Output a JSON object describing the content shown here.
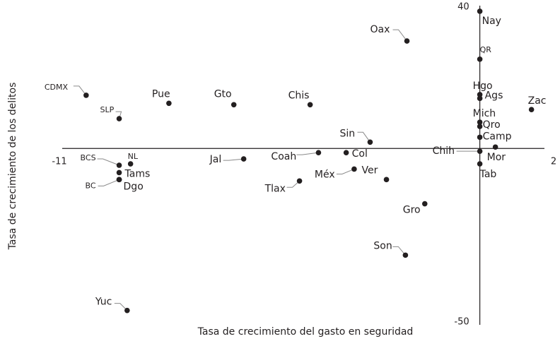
{
  "chart_data": {
    "type": "scatter",
    "x_label": "Tasa de crecimiento del gasto en seguridad",
    "y_label": "Tasa de crecimiento de los delitos",
    "xlim": [
      -11,
      2
    ],
    "ylim": [
      -50,
      40
    ],
    "xticks": [
      -11,
      2
    ],
    "yticks": [
      -50,
      40
    ],
    "grid": false,
    "color": "#231f20",
    "points": [
      {
        "label": "Nay",
        "x": 0,
        "y": 39.2
      },
      {
        "label": "Oax",
        "x": -1.92,
        "y": 30.7
      },
      {
        "label": "QR",
        "x": 0,
        "y": 25.5
      },
      {
        "label": "CDMX",
        "x": -10.37,
        "y": 15.2
      },
      {
        "label": "Pue",
        "x": -8.19,
        "y": 12.9
      },
      {
        "label": "Gto",
        "x": -6.48,
        "y": 12.5
      },
      {
        "label": "Chis",
        "x": -4.47,
        "y": 12.5
      },
      {
        "label": "Hgo",
        "x": 0,
        "y": 15.4
      },
      {
        "label": "Ags",
        "x": 0,
        "y": 14.3
      },
      {
        "label": "Zac",
        "x": 1.36,
        "y": 11.1
      },
      {
        "label": "SLP",
        "x": -9.5,
        "y": 8.5
      },
      {
        "label": "Mich",
        "x": 0,
        "y": 7.5
      },
      {
        "label": "Qro",
        "x": 0,
        "y": 6.3
      },
      {
        "label": "Camp",
        "x": 0,
        "y": 3.2
      },
      {
        "label": "Sin",
        "x": -2.89,
        "y": 1.8
      },
      {
        "label": "Chih",
        "x": 0,
        "y": -0.8
      },
      {
        "label": "Mor",
        "x": 0.41,
        "y": 0.4
      },
      {
        "label": "Coah",
        "x": -4.25,
        "y": -1.2
      },
      {
        "label": "Col",
        "x": -3.52,
        "y": -1.2
      },
      {
        "label": "Jal",
        "x": -6.22,
        "y": -3.0
      },
      {
        "label": "BCS",
        "x": -9.5,
        "y": -4.8
      },
      {
        "label": "NL",
        "x": -9.2,
        "y": -4.4
      },
      {
        "label": "Tab",
        "x": 0,
        "y": -4.4
      },
      {
        "label": "Tams",
        "x": -9.5,
        "y": -6.9
      },
      {
        "label": "Méx",
        "x": -3.31,
        "y": -5.9
      },
      {
        "label": "Ver",
        "x": -2.46,
        "y": -8.9
      },
      {
        "label": "BC",
        "x": -9.5,
        "y": -8.9
      },
      {
        "label": "Dgo",
        "x": -9.5,
        "y": -8.9
      },
      {
        "label": "Tlax",
        "x": -4.75,
        "y": -9.3
      },
      {
        "label": "Gro",
        "x": -1.45,
        "y": -15.8
      },
      {
        "label": "Son",
        "x": -1.96,
        "y": -30.5
      },
      {
        "label": "Yuc",
        "x": -9.29,
        "y": -46.3
      }
    ]
  }
}
